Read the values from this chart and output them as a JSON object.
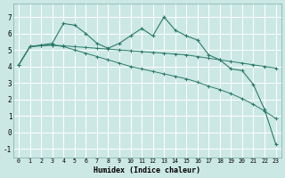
{
  "xlabel": "Humidex (Indice chaleur)",
  "background_color": "#cce8e4",
  "grid_color": "#b0d8d4",
  "line_color": "#2a7a6a",
  "x_data": [
    0,
    1,
    2,
    3,
    4,
    5,
    6,
    7,
    8,
    9,
    10,
    11,
    12,
    13,
    14,
    15,
    16,
    17,
    18,
    19,
    20,
    21,
    22,
    23
  ],
  "y_curve": [
    4.1,
    5.2,
    5.3,
    5.4,
    6.6,
    6.5,
    6.0,
    5.4,
    5.1,
    5.4,
    5.85,
    6.3,
    5.85,
    7.0,
    6.2,
    5.85,
    5.6,
    4.7,
    4.4,
    3.85,
    3.75,
    2.9,
    1.4,
    -0.7
  ],
  "y_flat": [
    4.1,
    5.2,
    5.25,
    5.3,
    5.25,
    5.2,
    5.15,
    5.1,
    5.05,
    5.0,
    4.95,
    4.9,
    4.85,
    4.8,
    4.75,
    4.7,
    4.6,
    4.5,
    4.4,
    4.3,
    4.2,
    4.1,
    4.0,
    3.9
  ],
  "y_diag": [
    4.1,
    5.2,
    5.25,
    5.3,
    5.2,
    5.0,
    4.8,
    4.6,
    4.4,
    4.2,
    4.0,
    3.85,
    3.7,
    3.55,
    3.4,
    3.25,
    3.05,
    2.8,
    2.6,
    2.35,
    2.05,
    1.7,
    1.3,
    0.85
  ],
  "ylim": [
    -1.5,
    7.8
  ],
  "yticks": [
    -1,
    0,
    1,
    2,
    3,
    4,
    5,
    6,
    7
  ],
  "xlim": [
    -0.5,
    23.5
  ]
}
